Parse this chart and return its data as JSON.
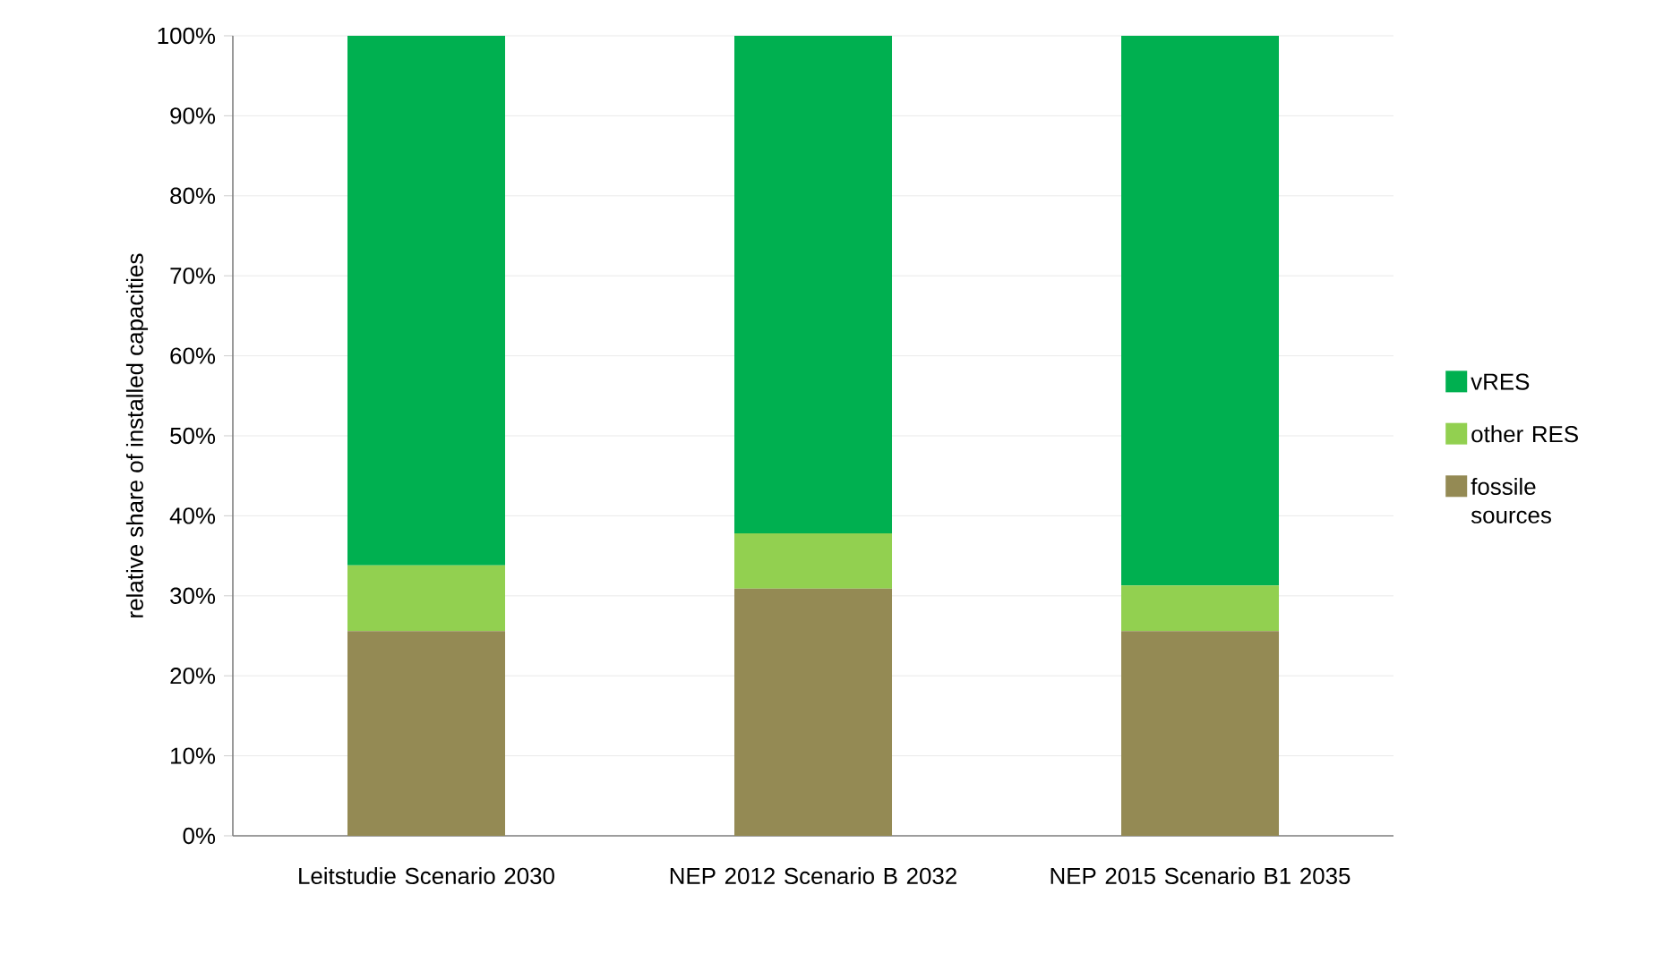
{
  "chart_data": {
    "type": "bar",
    "stacked": true,
    "ylabel": "relative share of installed capacities",
    "categories": [
      "Leitstudie Scenario 2030",
      "NEP 2012 Scenario B 2032",
      "NEP 2015 Scenario B1 2035"
    ],
    "series": [
      {
        "name": "fossile sources",
        "color": "#948a54",
        "values": [
          25.6,
          30.9,
          25.6
        ]
      },
      {
        "name": "other RES",
        "color": "#92d050",
        "values": [
          8.2,
          6.9,
          5.7
        ]
      },
      {
        "name": "vRES",
        "color": "#00b050",
        "values": [
          66.2,
          62.2,
          68.7
        ]
      }
    ],
    "ylim": [
      0,
      100
    ],
    "yticks": [
      {
        "value": 0,
        "label": "0%"
      },
      {
        "value": 10,
        "label": "10%"
      },
      {
        "value": 20,
        "label": "20%"
      },
      {
        "value": 30,
        "label": "30%"
      },
      {
        "value": 40,
        "label": "40%"
      },
      {
        "value": 50,
        "label": "50%"
      },
      {
        "value": 60,
        "label": "60%"
      },
      {
        "value": 70,
        "label": "70%"
      },
      {
        "value": 80,
        "label": "80%"
      },
      {
        "value": 90,
        "label": "90%"
      },
      {
        "value": 100,
        "label": "100%"
      }
    ],
    "grid": "y",
    "legend": "right"
  }
}
